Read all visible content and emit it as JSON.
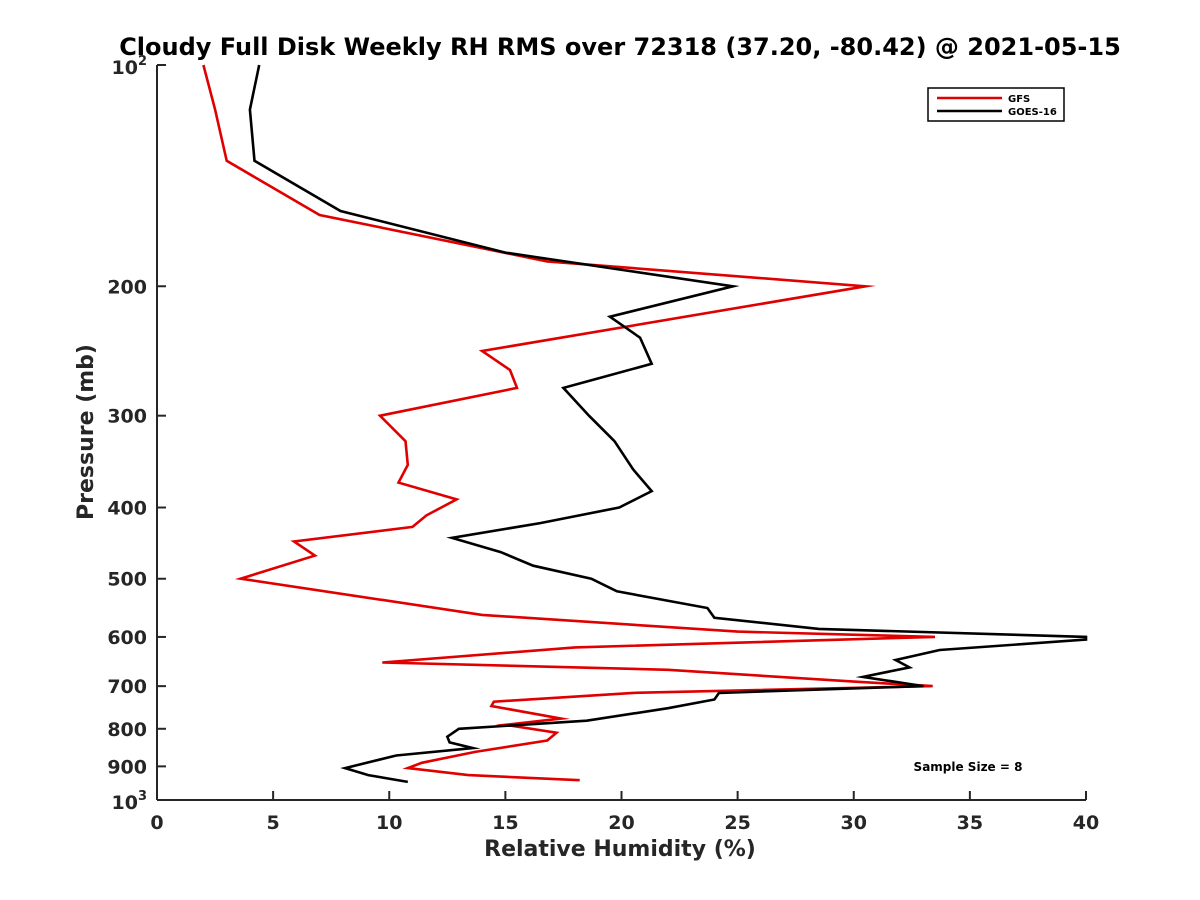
{
  "chart_data": {
    "type": "line",
    "title": "Cloudy Full Disk Weekly RH RMS over 72318 (37.20, -80.42) @ 2021-05-15",
    "xlabel": "Relative Humidity (%)",
    "ylabel": "Pressure (mb)",
    "xlim": [
      0,
      40
    ],
    "ylim": [
      100,
      1000
    ],
    "yscale": "log",
    "y_reversed": true,
    "xticks": [
      0,
      5,
      10,
      15,
      20,
      25,
      30,
      35,
      40
    ],
    "xtick_labels": [
      "0",
      "5",
      "10",
      "15",
      "20",
      "25",
      "30",
      "35",
      "40"
    ],
    "yticks": [
      200,
      300,
      400,
      500,
      600,
      700,
      800,
      900
    ],
    "ytick_labels": [
      "200",
      "300",
      "400",
      "500",
      "600",
      "700",
      "800",
      "900"
    ],
    "ytick_top": {
      "base": "10",
      "exp": "2"
    },
    "ytick_bottom": {
      "base": "10",
      "exp": "3"
    },
    "legend_position": "top-right",
    "annotation": "Sample Size = 8",
    "series": [
      {
        "name": "GFS",
        "color": "#e00000",
        "points": [
          {
            "x": 2.0,
            "p": 100
          },
          {
            "x": 2.5,
            "p": 115
          },
          {
            "x": 3.0,
            "p": 135
          },
          {
            "x": 7.0,
            "p": 160
          },
          {
            "x": 16.8,
            "p": 185
          },
          {
            "x": 30.5,
            "p": 200
          },
          {
            "x": 14.0,
            "p": 245
          },
          {
            "x": 15.2,
            "p": 260
          },
          {
            "x": 15.5,
            "p": 275
          },
          {
            "x": 9.6,
            "p": 300
          },
          {
            "x": 10.7,
            "p": 325
          },
          {
            "x": 10.8,
            "p": 350
          },
          {
            "x": 10.4,
            "p": 370
          },
          {
            "x": 12.9,
            "p": 390
          },
          {
            "x": 11.6,
            "p": 410
          },
          {
            "x": 11.0,
            "p": 425
          },
          {
            "x": 5.9,
            "p": 445
          },
          {
            "x": 6.8,
            "p": 465
          },
          {
            "x": 3.6,
            "p": 500
          },
          {
            "x": 14.0,
            "p": 560
          },
          {
            "x": 25.0,
            "p": 590
          },
          {
            "x": 33.5,
            "p": 600
          },
          {
            "x": 18.0,
            "p": 620
          },
          {
            "x": 9.7,
            "p": 650
          },
          {
            "x": 22.0,
            "p": 665
          },
          {
            "x": 30.0,
            "p": 690
          },
          {
            "x": 33.4,
            "p": 700
          },
          {
            "x": 20.5,
            "p": 715
          },
          {
            "x": 14.5,
            "p": 735
          },
          {
            "x": 14.4,
            "p": 745
          },
          {
            "x": 17.4,
            "p": 775
          },
          {
            "x": 15.0,
            "p": 790
          },
          {
            "x": 17.2,
            "p": 810
          },
          {
            "x": 16.8,
            "p": 830
          },
          {
            "x": 13.7,
            "p": 860
          },
          {
            "x": 11.4,
            "p": 890
          },
          {
            "x": 10.8,
            "p": 905
          },
          {
            "x": 13.4,
            "p": 925
          },
          {
            "x": 18.2,
            "p": 940
          }
        ]
      },
      {
        "name": "GOES-16",
        "color": "#000000",
        "points": [
          {
            "x": 4.4,
            "p": 100
          },
          {
            "x": 4.0,
            "p": 115
          },
          {
            "x": 4.2,
            "p": 135
          },
          {
            "x": 7.9,
            "p": 158
          },
          {
            "x": 15.0,
            "p": 180
          },
          {
            "x": 24.8,
            "p": 200
          },
          {
            "x": 19.5,
            "p": 220
          },
          {
            "x": 20.8,
            "p": 235
          },
          {
            "x": 21.3,
            "p": 255
          },
          {
            "x": 17.5,
            "p": 275
          },
          {
            "x": 18.6,
            "p": 300
          },
          {
            "x": 19.7,
            "p": 325
          },
          {
            "x": 20.5,
            "p": 355
          },
          {
            "x": 21.3,
            "p": 380
          },
          {
            "x": 19.9,
            "p": 400
          },
          {
            "x": 16.5,
            "p": 420
          },
          {
            "x": 12.7,
            "p": 440
          },
          {
            "x": 14.8,
            "p": 460
          },
          {
            "x": 16.2,
            "p": 480
          },
          {
            "x": 18.7,
            "p": 500
          },
          {
            "x": 19.8,
            "p": 520
          },
          {
            "x": 23.7,
            "p": 548
          },
          {
            "x": 24.0,
            "p": 565
          },
          {
            "x": 28.5,
            "p": 585
          },
          {
            "x": 40.0,
            "p": 600
          },
          {
            "x": 40.0,
            "p": 605
          },
          {
            "x": 33.7,
            "p": 625
          },
          {
            "x": 31.8,
            "p": 645
          },
          {
            "x": 32.4,
            "p": 660
          },
          {
            "x": 30.4,
            "p": 680
          },
          {
            "x": 33.0,
            "p": 700
          },
          {
            "x": 24.2,
            "p": 715
          },
          {
            "x": 24.0,
            "p": 730
          },
          {
            "x": 22.0,
            "p": 750
          },
          {
            "x": 18.5,
            "p": 780
          },
          {
            "x": 13.0,
            "p": 800
          },
          {
            "x": 12.5,
            "p": 820
          },
          {
            "x": 12.6,
            "p": 835
          },
          {
            "x": 13.6,
            "p": 850
          },
          {
            "x": 10.3,
            "p": 870
          },
          {
            "x": 8.1,
            "p": 905
          },
          {
            "x": 9.1,
            "p": 925
          },
          {
            "x": 10.8,
            "p": 945
          }
        ]
      }
    ]
  }
}
